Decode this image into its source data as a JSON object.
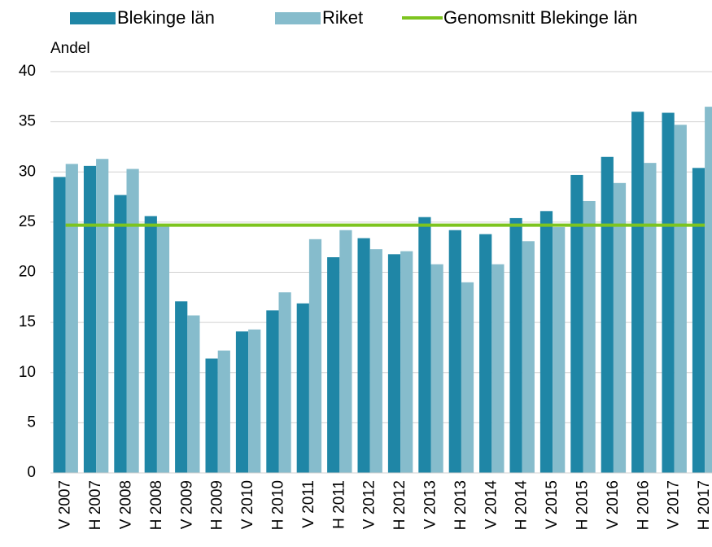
{
  "chart_data": {
    "type": "bar",
    "y_label": "Andel",
    "categories": [
      "V 2007",
      "H 2007",
      "V 2008",
      "H 2008",
      "V 2009",
      "H 2009",
      "V 2010",
      "H 2010",
      "V 2011",
      "H 2011",
      "V 2012",
      "H 2012",
      "V 2013",
      "H 2013",
      "V 2014",
      "H 2014",
      "V 2015",
      "H 2015",
      "V 2016",
      "H 2016",
      "V 2017",
      "H 2017"
    ],
    "series": [
      {
        "name": "Blekinge län",
        "color": "#1f86a6",
        "values": [
          29.5,
          30.6,
          27.7,
          25.6,
          17.1,
          11.4,
          14.1,
          16.2,
          16.9,
          21.5,
          23.4,
          21.8,
          25.5,
          24.2,
          23.8,
          25.4,
          26.1,
          29.7,
          31.5,
          36.0,
          35.9,
          30.4
        ]
      },
      {
        "name": "Riket",
        "color": "#86bccc",
        "values": [
          30.8,
          31.3,
          30.3,
          24.8,
          15.7,
          12.2,
          14.3,
          18.0,
          23.3,
          24.2,
          22.3,
          22.1,
          20.8,
          19.0,
          20.8,
          23.1,
          24.5,
          27.1,
          28.9,
          30.9,
          34.7,
          36.5
        ]
      },
      {
        "name": "Genomsnitt Blekinge län",
        "color": "#7dc41f",
        "type": "line",
        "values": [
          24.7,
          24.7,
          24.7,
          24.7,
          24.7,
          24.7,
          24.7,
          24.7,
          24.7,
          24.7,
          24.7,
          24.7,
          24.7,
          24.7,
          24.7,
          24.7,
          24.7,
          24.7,
          24.7,
          24.7,
          24.7,
          24.7
        ]
      }
    ],
    "ylim": [
      0,
      40
    ],
    "yticks": [
      0,
      5,
      10,
      15,
      20,
      25,
      30,
      35,
      40
    ],
    "grid": true,
    "legend": "top"
  }
}
